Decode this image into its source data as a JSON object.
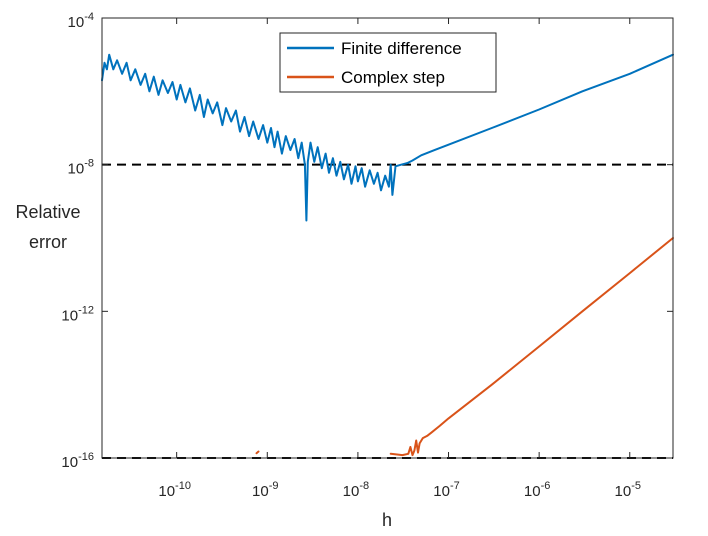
{
  "chart_data": {
    "type": "line",
    "xlabel": "h",
    "ylabel": [
      "Relative",
      "error"
    ],
    "x_scale": "log",
    "y_scale": "log",
    "xlim": [
      1.5e-11,
      3e-05
    ],
    "ylim": [
      1e-16,
      0.0001
    ],
    "xticks": [
      {
        "value": 1e-10,
        "base": "10",
        "exp": "-10"
      },
      {
        "value": 1e-09,
        "base": "10",
        "exp": "-9"
      },
      {
        "value": 1e-08,
        "base": "10",
        "exp": "-8"
      },
      {
        "value": 1e-07,
        "base": "10",
        "exp": "-7"
      },
      {
        "value": 1e-06,
        "base": "10",
        "exp": "-6"
      },
      {
        "value": 1e-05,
        "base": "10",
        "exp": "-5"
      }
    ],
    "yticks": [
      {
        "value": 1e-16,
        "base": "10",
        "exp": "-16"
      },
      {
        "value": 1e-12,
        "base": "10",
        "exp": "-12"
      },
      {
        "value": 1e-08,
        "base": "10",
        "exp": "-8"
      },
      {
        "value": 0.0001,
        "base": "10",
        "exp": "-4"
      }
    ],
    "grid": false,
    "legend_position": "top-center",
    "reference_lines": [
      {
        "y": 1e-08,
        "style": "dashed",
        "color": "#000000"
      },
      {
        "y": 1e-16,
        "style": "dashed",
        "color": "#000000"
      }
    ],
    "series": [
      {
        "name": "Finite difference",
        "color": "#0072BD",
        "points": [
          [
            1.5e-11,
            2e-06
          ],
          [
            1.6e-11,
            6e-06
          ],
          [
            1.7e-11,
            4e-06
          ],
          [
            1.8e-11,
            1e-05
          ],
          [
            2e-11,
            4e-06
          ],
          [
            2.2e-11,
            7e-06
          ],
          [
            2.5e-11,
            3e-06
          ],
          [
            2.8e-11,
            6e-06
          ],
          [
            3.1e-11,
            2e-06
          ],
          [
            3.5e-11,
            4e-06
          ],
          [
            4e-11,
            1.5e-06
          ],
          [
            4.5e-11,
            3e-06
          ],
          [
            5e-11,
            1e-06
          ],
          [
            5.6e-11,
            2.5e-06
          ],
          [
            6.3e-11,
            8e-07
          ],
          [
            7e-11,
            2e-06
          ],
          [
            8e-11,
            9e-07
          ],
          [
            9e-11,
            1.8e-06
          ],
          [
            1e-10,
            6e-07
          ],
          [
            1.1e-10,
            1.5e-06
          ],
          [
            1.25e-10,
            5e-07
          ],
          [
            1.4e-10,
            1.2e-06
          ],
          [
            1.6e-10,
            3e-07
          ],
          [
            1.8e-10,
            8e-07
          ],
          [
            2e-10,
            2e-07
          ],
          [
            2.2e-10,
            6e-07
          ],
          [
            2.5e-10,
            2.5e-07
          ],
          [
            2.8e-10,
            5e-07
          ],
          [
            3.2e-10,
            1.2e-07
          ],
          [
            3.5e-10,
            3.5e-07
          ],
          [
            4e-10,
            1.5e-07
          ],
          [
            4.5e-10,
            3e-07
          ],
          [
            5e-10,
            8e-08
          ],
          [
            5.6e-10,
            2e-07
          ],
          [
            6.3e-10,
            6e-08
          ],
          [
            7e-10,
            1.5e-07
          ],
          [
            8e-10,
            5e-08
          ],
          [
            9e-10,
            1.2e-07
          ],
          [
            1e-09,
            4e-08
          ],
          [
            1.1e-09,
            1e-07
          ],
          [
            1.2e-09,
            3e-08
          ],
          [
            1.3e-09,
            8e-08
          ],
          [
            1.45e-09,
            2e-08
          ],
          [
            1.6e-09,
            6e-08
          ],
          [
            1.8e-09,
            2.5e-08
          ],
          [
            2e-09,
            5e-08
          ],
          [
            2.2e-09,
            1.5e-08
          ],
          [
            2.4e-09,
            4e-08
          ],
          [
            2.6e-09,
            1e-08
          ],
          [
            2.7e-09,
            3e-10
          ],
          [
            2.8e-09,
            1.2e-08
          ],
          [
            3e-09,
            4e-08
          ],
          [
            3.3e-09,
            1.2e-08
          ],
          [
            3.6e-09,
            3e-08
          ],
          [
            4e-09,
            8e-09
          ],
          [
            4.4e-09,
            2e-08
          ],
          [
            4.8e-09,
            6e-09
          ],
          [
            5.3e-09,
            1.5e-08
          ],
          [
            5.8e-09,
            5e-09
          ],
          [
            6.4e-09,
            1.2e-08
          ],
          [
            7e-09,
            4e-09
          ],
          [
            7.8e-09,
            1e-08
          ],
          [
            8.5e-09,
            3e-09
          ],
          [
            9.4e-09,
            9e-09
          ],
          [
            1e-08,
            3.5e-09
          ],
          [
            1.1e-08,
            8e-09
          ],
          [
            1.2e-08,
            2.5e-09
          ],
          [
            1.35e-08,
            7e-09
          ],
          [
            1.5e-08,
            3e-09
          ],
          [
            1.65e-08,
            6e-09
          ],
          [
            1.8e-08,
            2e-09
          ],
          [
            2e-08,
            5e-09
          ],
          [
            2.2e-08,
            2.5e-09
          ],
          [
            2.3e-08,
            1e-08
          ],
          [
            2.4e-08,
            1.5e-09
          ],
          [
            2.6e-08,
            9e-09
          ],
          [
            3e-08,
            1e-08
          ],
          [
            3.5e-08,
            1.1e-08
          ],
          [
            4e-08,
            1.3e-08
          ],
          [
            5e-08,
            1.8e-08
          ],
          [
            7e-08,
            2.5e-08
          ],
          [
            1e-07,
            3.5e-08
          ],
          [
            3e-07,
            1e-07
          ],
          [
            1e-06,
            3.2e-07
          ],
          [
            3e-06,
            1e-06
          ],
          [
            1e-05,
            3e-06
          ],
          [
            3e-05,
            1e-05
          ]
        ]
      },
      {
        "name": "Complex step",
        "color": "#D95319",
        "segments": [
          [
            [
              7.6e-10,
              1.35e-16
            ],
            [
              8e-10,
              1.5e-16
            ]
          ],
          [
            [
              2.3e-08,
              1.3e-16
            ],
            [
              3.1e-08,
              1.2e-16
            ],
            [
              3.6e-08,
              1.3e-16
            ],
            [
              3.8e-08,
              2e-16
            ],
            [
              4e-08,
              1.2e-16
            ],
            [
              4.2e-08,
              1.6e-16
            ],
            [
              4.4e-08,
              3e-16
            ],
            [
              4.6e-08,
              1.4e-16
            ],
            [
              4.8e-08,
              2.5e-16
            ],
            [
              5.2e-08,
              3.5e-16
            ],
            [
              5.8e-08,
              4e-16
            ],
            [
              6.5e-08,
              5e-16
            ],
            [
              8e-08,
              7.5e-16
            ],
            [
              1e-07,
              1.2e-15
            ],
            [
              3e-07,
              1e-14
            ],
            [
              1e-06,
              1.1e-13
            ],
            [
              3e-06,
              1e-12
            ],
            [
              1e-05,
              1.1e-11
            ],
            [
              3e-05,
              1e-10
            ]
          ]
        ]
      }
    ]
  }
}
